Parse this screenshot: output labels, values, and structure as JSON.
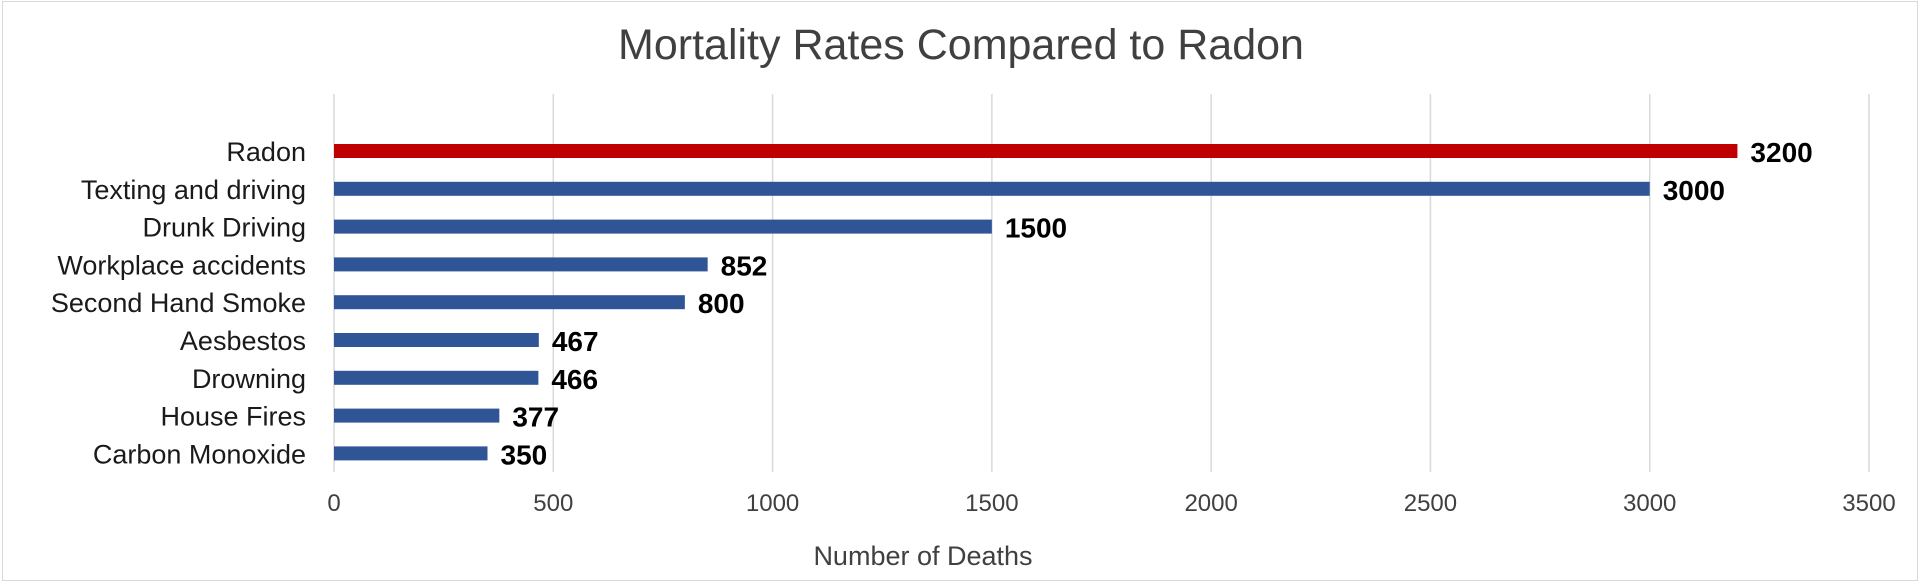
{
  "chart_data": {
    "type": "bar",
    "orientation": "horizontal",
    "title": "Mortality Rates Compared to Radon",
    "xlabel": "Number of Deaths",
    "ylabel": "",
    "xlim": [
      0,
      3500
    ],
    "xticks": [
      0,
      500,
      1000,
      1500,
      2000,
      2500,
      3000,
      3500
    ],
    "grid": true,
    "legend": "none",
    "categories": [
      "Radon",
      "Texting and driving",
      "Drunk Driving",
      "Workplace accidents",
      "Second Hand Smoke",
      "Aesbestos",
      "Drowning",
      "House Fires",
      "Carbon Monoxide"
    ],
    "values": [
      3200,
      3000,
      1500,
      852,
      800,
      467,
      466,
      377,
      350
    ],
    "data_labels": [
      "3200",
      "3000",
      "1500",
      "852",
      "800",
      "467",
      "466",
      "377",
      "350"
    ],
    "colors": {
      "highlight": "#c00000",
      "default": "#2f5597",
      "highlight_category": "Radon"
    }
  }
}
